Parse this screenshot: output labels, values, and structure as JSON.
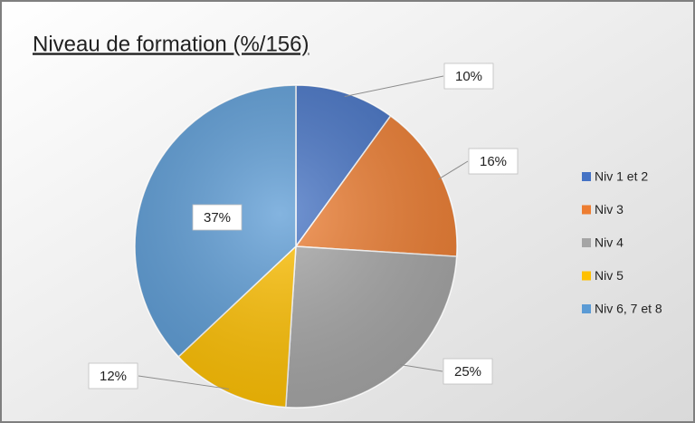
{
  "chart_data": {
    "type": "pie",
    "title": "Niveau de formation (%/156)",
    "categories": [
      "Niv 1 et 2",
      "Niv 3",
      "Niv 4",
      "Niv 5",
      "Niv 6, 7 et 8"
    ],
    "values": [
      10,
      16,
      25,
      12,
      37
    ],
    "value_labels": [
      "10%",
      "16%",
      "25%",
      "12%",
      "37%"
    ],
    "colors": [
      "#4472c4",
      "#ed7d31",
      "#a5a5a5",
      "#ffc000",
      "#5b9bd5"
    ],
    "legend": "right"
  }
}
